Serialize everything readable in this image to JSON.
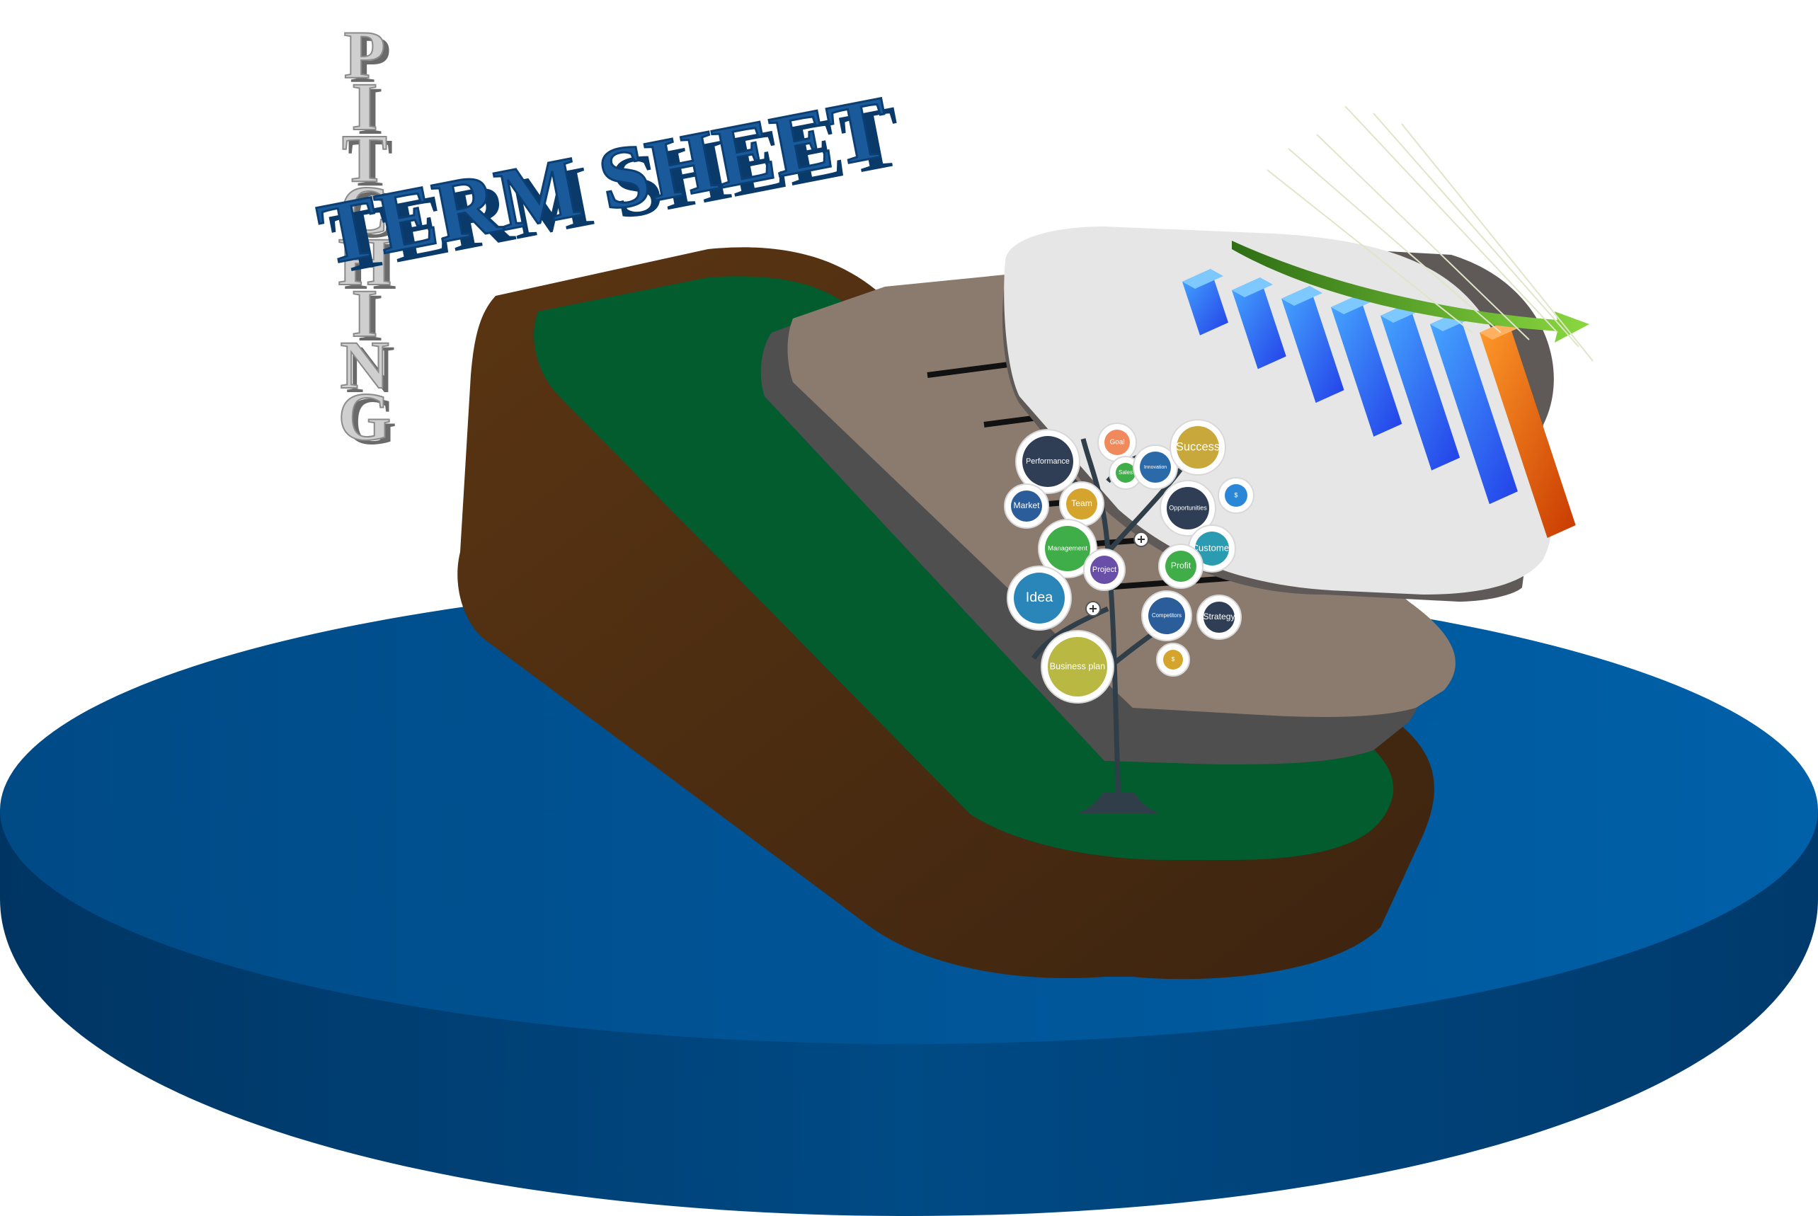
{
  "vertical_word": [
    "P",
    "I",
    "T",
    "C",
    "H",
    "I",
    "N",
    "G"
  ],
  "headline": "TERM SHEET",
  "tree_nodes": [
    {
      "label": "Goal",
      "color": "#f08a5d"
    },
    {
      "label": "Performance",
      "color": "#2f3e55"
    },
    {
      "label": "Sales",
      "color": "#3fae49"
    },
    {
      "label": "Innovation",
      "color": "#2b6aa8"
    },
    {
      "label": "Success",
      "color": "#c8a83a"
    },
    {
      "label": "Market",
      "color": "#2b5d9a"
    },
    {
      "label": "Team",
      "color": "#d4a42c"
    },
    {
      "label": "Opportunities",
      "color": "#2f3e55"
    },
    {
      "label": "$",
      "color": "#2a86d6"
    },
    {
      "label": "Management",
      "color": "#3fae49"
    },
    {
      "label": "Project",
      "color": "#6a4fa8"
    },
    {
      "label": "Customer",
      "color": "#2a9bb0"
    },
    {
      "label": "Profit",
      "color": "#3fae49"
    },
    {
      "label": "Idea",
      "color": "#2a86b8"
    },
    {
      "label": "Competitors",
      "color": "#2b5d9a"
    },
    {
      "label": "Strategy",
      "color": "#2f3e55"
    },
    {
      "label": "Business plan",
      "color": "#b8b842"
    },
    {
      "label": "$",
      "color": "#d4a42c"
    }
  ],
  "chart_data": {
    "type": "bar",
    "categories": [
      "",
      "",
      "",
      "",
      "",
      "",
      ""
    ],
    "values": [
      1,
      2,
      3,
      4,
      5,
      6,
      7
    ],
    "series": [
      {
        "values": [
          1,
          2,
          3,
          4,
          5,
          6,
          7
        ]
      }
    ],
    "bar_colors": [
      "#2d62ff",
      "#2d62ff",
      "#2d62ff",
      "#2d62ff",
      "#2d62ff",
      "#2d62ff",
      "#ff6a00"
    ],
    "trend_arrow": "rising",
    "title": "",
    "xlabel": "",
    "ylabel": ""
  },
  "colors": {
    "platform": "#004b87",
    "board_wood": "#4e2e10",
    "board_felt": "#025c2e",
    "document": "#8b7b6e",
    "headline_blue": "#1a5a9a",
    "letter_grey": "#c8c8c8",
    "accent_orange": "#ff6a00",
    "arrow_green": "#6fc23a"
  }
}
